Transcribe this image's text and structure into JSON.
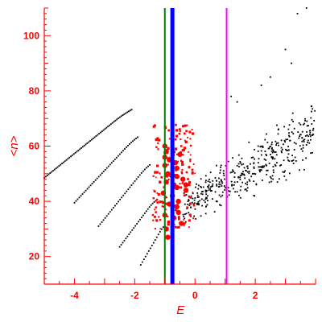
{
  "chart_data": {
    "type": "scatter",
    "title": "",
    "xlabel": "E",
    "ylabel": "<n>",
    "xlim": [
      -5,
      4
    ],
    "ylim": [
      10,
      110
    ],
    "x_ticks": [
      -4,
      -2,
      0,
      2
    ],
    "y_ticks": [
      20,
      40,
      60,
      80,
      100
    ],
    "grid": false,
    "colors": {
      "axis": "#ff0000",
      "black_points": "#000000",
      "red_points": "#ff0000",
      "green_line": "#008000",
      "blue_line": "#0000ff",
      "magenta_line": "#ff00ff"
    },
    "vertical_lines": [
      {
        "x": -1.0,
        "color": "#008000",
        "width": 2
      },
      {
        "x": -0.75,
        "color": "#0000ff",
        "width": 5
      },
      {
        "x": 1.05,
        "color": "#ff00ff",
        "width": 2
      }
    ],
    "ladder_series": [
      {
        "x_start": -5.0,
        "y_start": 48.5,
        "x_end": -2.1,
        "y_end": 74,
        "count": 60
      },
      {
        "x_start": -4.0,
        "y_start": 39.5,
        "x_end": -1.9,
        "y_end": 64,
        "count": 40
      },
      {
        "x_start": -3.2,
        "y_start": 31,
        "x_end": -1.5,
        "y_end": 54,
        "count": 32
      },
      {
        "x_start": -2.5,
        "y_start": 23.5,
        "x_end": -1.3,
        "y_end": 41,
        "count": 24
      },
      {
        "x_start": -1.8,
        "y_start": 17,
        "x_end": -1.0,
        "y_end": 32,
        "count": 16
      }
    ],
    "black_cloud": {
      "x_range": [
        -0.4,
        4.0
      ],
      "y_center_at_xmin": 38,
      "y_slope": 6.2,
      "spread": 9,
      "count": 420,
      "outliers": [
        [
          3.0,
          95
        ],
        [
          3.4,
          108
        ],
        [
          3.7,
          110
        ],
        [
          3.2,
          90
        ],
        [
          2.5,
          85
        ],
        [
          2.2,
          82
        ],
        [
          1.2,
          78
        ],
        [
          1.4,
          76
        ]
      ]
    },
    "red_cloud": {
      "x_range": [
        -1.4,
        0.0
      ],
      "y_range": [
        30,
        68
      ],
      "count": 170
    },
    "red_big_points": [
      [
        -1.0,
        60
      ],
      [
        -0.95,
        58
      ],
      [
        -1.0,
        56
      ],
      [
        -0.85,
        55
      ],
      [
        -1.0,
        53
      ],
      [
        -0.6,
        52
      ],
      [
        -0.9,
        50
      ],
      [
        -0.6,
        49
      ],
      [
        -0.4,
        48
      ],
      [
        -0.95,
        47
      ],
      [
        -0.7,
        46
      ],
      [
        -0.6,
        45
      ],
      [
        -0.3,
        44
      ],
      [
        -1.05,
        43
      ],
      [
        -0.75,
        42
      ],
      [
        -0.55,
        40
      ],
      [
        -0.85,
        39
      ],
      [
        -0.6,
        38
      ],
      [
        -0.55,
        36
      ],
      [
        -1.0,
        35
      ],
      [
        -0.7,
        34
      ],
      [
        -0.45,
        32
      ],
      [
        -0.95,
        30
      ],
      [
        -0.9,
        27
      ],
      [
        -0.3,
        46
      ],
      [
        -0.65,
        54
      ],
      [
        -0.5,
        57
      ]
    ]
  }
}
